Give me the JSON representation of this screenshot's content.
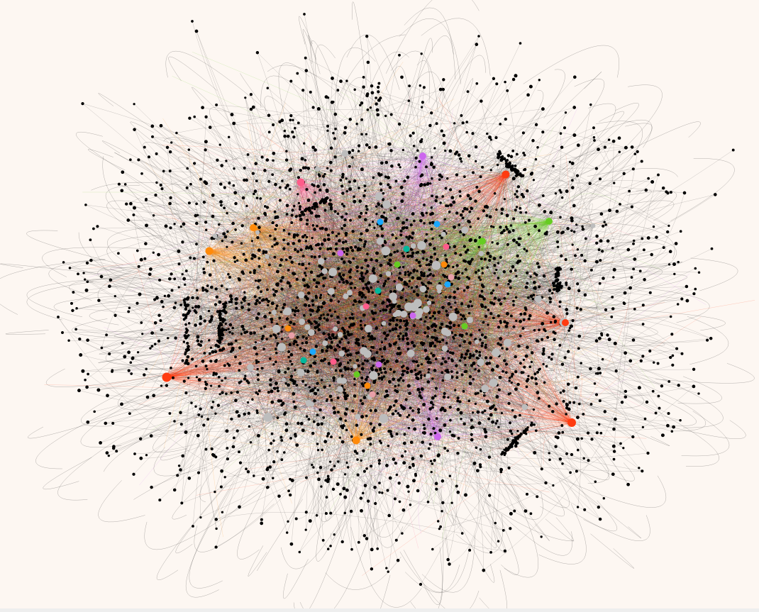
{
  "network": {
    "background_color": "#fdf7f2",
    "node_color": "#000000",
    "hub_node_color": "#bdbdbd",
    "edge_color": "#1a1a1a",
    "community_colors": {
      "red": "#ff3b10",
      "orange": "#ff8a0a",
      "pink": "#ff5c8a",
      "purple": "#cc66ee",
      "green": "#66cc22",
      "teal": "#00b89c",
      "blue": "#1aa8ff",
      "rose": "#e8a0a8"
    }
  }
}
